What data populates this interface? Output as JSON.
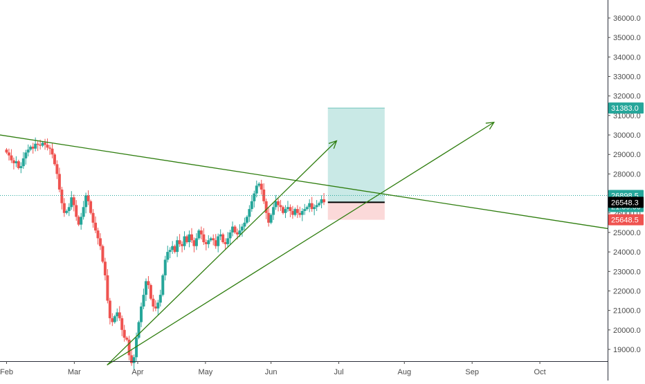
{
  "chart_data": {
    "type": "candlestick",
    "title": "",
    "y_axis": {
      "position": "right",
      "range": [
        18500,
        36500
      ],
      "ticks": [
        "19000.0",
        "20000.0",
        "21000.0",
        "22000.0",
        "23000.0",
        "24000.0",
        "25000.0",
        "26000.0",
        "27000.0",
        "28000.0",
        "29000.0",
        "30000.0",
        "31000.0",
        "32000.0",
        "33000.0",
        "34000.0",
        "35000.0",
        "36000.0"
      ]
    },
    "x_axis": {
      "ticks": [
        "Feb",
        "Mar",
        "Apr",
        "May",
        "Jun",
        "Jul",
        "Aug",
        "Sep",
        "Oct"
      ],
      "range_days": [
        -3,
        275
      ]
    },
    "colors": {
      "up": "#26a69a",
      "down": "#ef5350",
      "trendline": "#2e7d0e",
      "target_zone": "#26a69a",
      "stop_zone": "#ef5350",
      "entry_line": "#000000",
      "last_price_line": "#26a69a"
    },
    "candles_close": [
      29100,
      28950,
      28700,
      28550,
      28650,
      28300,
      28400,
      28800,
      29100,
      29250,
      29400,
      29300,
      29550,
      29500,
      29450,
      29600,
      29500,
      29350,
      29300,
      29000,
      28500,
      28000,
      27200,
      26500,
      26000,
      26100,
      26300,
      26800,
      26400,
      25800,
      25400,
      25800,
      26300,
      26900,
      26600,
      26000,
      25500,
      25100,
      24700,
      24300,
      23500,
      22800,
      21500,
      20600,
      20400,
      20700,
      20900,
      20600,
      20000,
      19600,
      19500,
      18700,
      18300,
      18600,
      19600,
      20400,
      21200,
      21800,
      22500,
      22300,
      21600,
      21200,
      21100,
      21400,
      21800,
      22800,
      23600,
      24000,
      24100,
      24300,
      24000,
      24600,
      24400,
      24300,
      24800,
      24500,
      24900,
      24600,
      24300,
      24700,
      25100,
      24900,
      24500,
      24400,
      24600,
      24700,
      24600,
      24300,
      24800,
      24900,
      24500,
      24400,
      24700,
      25000,
      25300,
      25000,
      24900,
      25100,
      25300,
      25500,
      25800,
      26200,
      26600,
      27000,
      27400,
      27500,
      27200,
      26600,
      26000,
      25500,
      25900,
      26300,
      26600,
      26400,
      26300,
      26000,
      26200,
      26300,
      26100,
      25900,
      26200,
      26000,
      25900,
      26100,
      26200,
      26300,
      26500,
      26200,
      26300,
      26400,
      26500,
      26700,
      26548.3
    ],
    "last_price": {
      "value": "26898.5",
      "countdown": "21:39:00"
    },
    "position": {
      "target": "31383.0",
      "entry": "26548.3",
      "stop": "25648.5"
    },
    "annotations": {
      "upper_trendline": [
        [
          -3,
          30000
        ],
        [
          275,
          25200
        ]
      ],
      "steep_ray": [
        [
          46,
          18200
        ],
        [
          151,
          29700
        ]
      ],
      "shallow_ray": [
        [
          46,
          18200
        ],
        [
          223,
          30650
        ]
      ],
      "position_box_days": [
        147,
        173
      ]
    }
  }
}
